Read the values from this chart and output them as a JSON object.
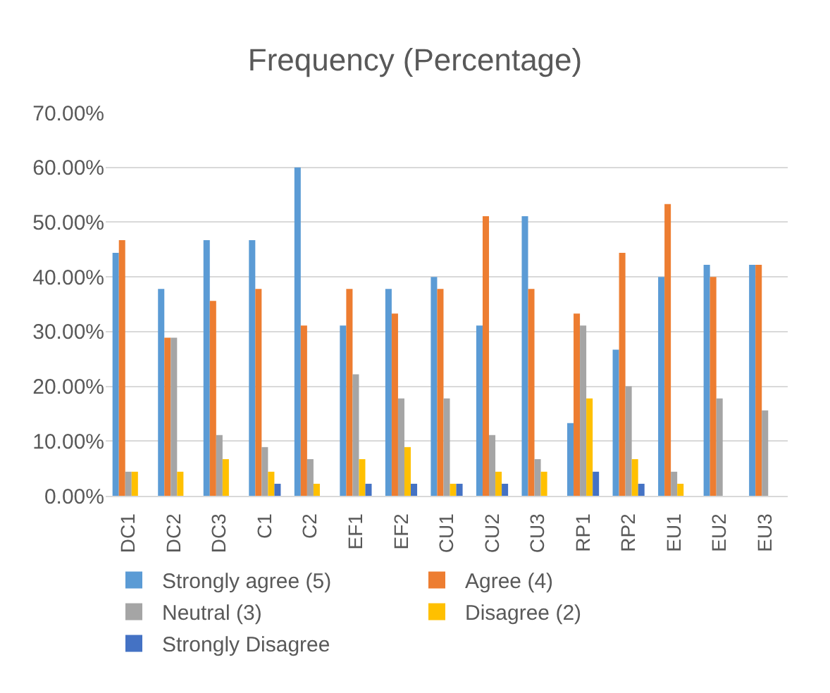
{
  "chart_data": {
    "type": "bar",
    "title": "Frequency (Percentage)",
    "categories": [
      "DC1",
      "DC2",
      "DC3",
      "C1",
      "C2",
      "EF1",
      "EF2",
      "CU1",
      "CU2",
      "CU3",
      "RP1",
      "RP2",
      "EU1",
      "EU2",
      "EU3"
    ],
    "series": [
      {
        "name": "Strongly agree (5)",
        "color": "#5b9bd5",
        "values": [
          44.4,
          37.8,
          46.7,
          46.7,
          60,
          31.1,
          37.8,
          40,
          31.1,
          51.1,
          13.3,
          26.7,
          40,
          42.2,
          42.2
        ]
      },
      {
        "name": "Agree (4)",
        "color": "#ed7d31",
        "values": [
          46.7,
          28.9,
          35.6,
          37.8,
          31.1,
          37.8,
          33.3,
          37.8,
          51.1,
          37.8,
          33.3,
          44.4,
          53.3,
          40,
          42.2
        ]
      },
      {
        "name": "Neutral (3)",
        "color": "#a5a5a5",
        "values": [
          4.4,
          28.9,
          11.1,
          8.9,
          6.7,
          22.2,
          17.8,
          17.8,
          11.1,
          6.7,
          31.1,
          20,
          4.4,
          17.8,
          15.6
        ]
      },
      {
        "name": "Disagree (2)",
        "color": "#ffc000",
        "values": [
          4.4,
          4.4,
          6.7,
          4.4,
          2.2,
          6.7,
          8.9,
          2.2,
          4.4,
          4.4,
          17.8,
          6.7,
          2.2,
          0,
          0
        ]
      },
      {
        "name": "Strongly Disagree",
        "color": "#4472c4",
        "values": [
          0,
          0,
          0,
          2.2,
          0,
          2.2,
          2.2,
          2.2,
          2.2,
          0,
          4.4,
          2.2,
          0,
          0,
          0
        ]
      }
    ],
    "ylim": [
      0,
      70
    ],
    "yticks": [
      {
        "value": 0,
        "label": "0.00%"
      },
      {
        "value": 10,
        "label": "10.00%"
      },
      {
        "value": 20,
        "label": "20.00%"
      },
      {
        "value": 30,
        "label": "30.00%"
      },
      {
        "value": 40,
        "label": "40.00%"
      },
      {
        "value": 50,
        "label": "50.00%"
      },
      {
        "value": 60,
        "label": "60.00%"
      },
      {
        "value": 70,
        "label": "70.00%"
      }
    ],
    "grid": "y",
    "legend": "bottom"
  }
}
